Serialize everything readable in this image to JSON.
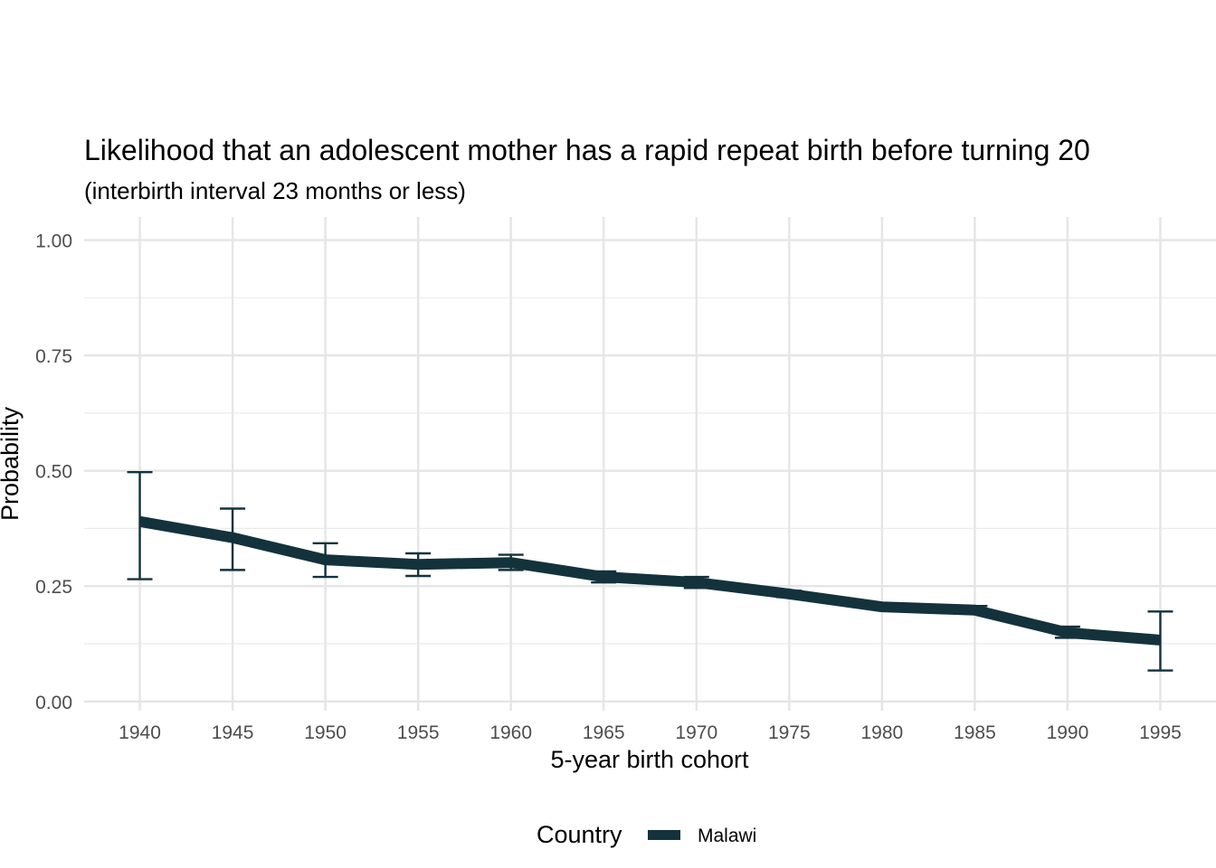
{
  "chart_data": {
    "type": "line",
    "title": "Likelihood that an adolescent mother has a rapid repeat birth before turning 20",
    "subtitle": "(interbirth interval 23 months or less)",
    "xlabel": "5-year birth cohort",
    "ylabel": "Probability",
    "x": [
      1940,
      1945,
      1950,
      1955,
      1960,
      1965,
      1970,
      1975,
      1980,
      1985,
      1990,
      1995
    ],
    "xlim": [
      1937,
      1998
    ],
    "ylim": [
      -0.02,
      1.05
    ],
    "yticks": [
      0,
      0.25,
      0.5,
      0.75,
      1
    ],
    "ytick_labels": [
      "0.00",
      "0.25",
      "0.50",
      "0.75",
      "1.00"
    ],
    "grid": true,
    "legend": {
      "title": "Country",
      "position": "bottom"
    },
    "series": [
      {
        "name": "Malawi",
        "color": "#14323c",
        "values": [
          0.39,
          0.355,
          0.307,
          0.297,
          0.301,
          0.27,
          0.258,
          0.233,
          0.205,
          0.198,
          0.149,
          0.133
        ],
        "lower": [
          0.265,
          0.285,
          0.27,
          0.272,
          0.285,
          0.258,
          0.246,
          0.226,
          0.2,
          0.19,
          0.138,
          0.067
        ],
        "upper": [
          0.497,
          0.418,
          0.343,
          0.321,
          0.318,
          0.282,
          0.27,
          0.24,
          0.21,
          0.207,
          0.162,
          0.195
        ]
      }
    ]
  }
}
